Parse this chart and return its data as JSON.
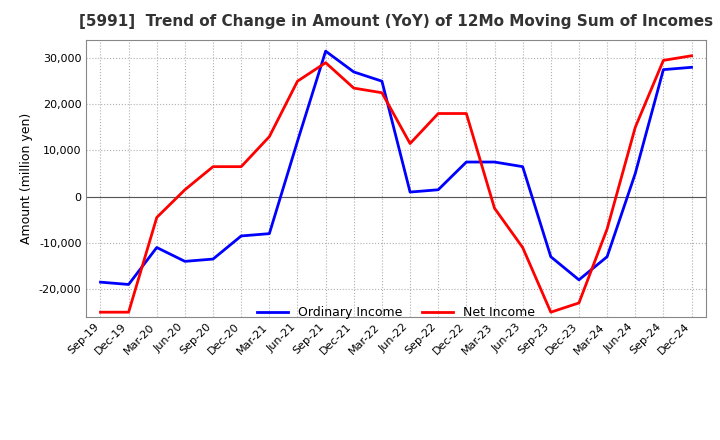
{
  "title": "[5991]  Trend of Change in Amount (YoY) of 12Mo Moving Sum of Incomes",
  "ylabel": "Amount (million yen)",
  "ylim": [
    -26000,
    34000
  ],
  "yticks": [
    -20000,
    -10000,
    0,
    10000,
    20000,
    30000
  ],
  "x_labels": [
    "Sep-19",
    "Dec-19",
    "Mar-20",
    "Jun-20",
    "Sep-20",
    "Dec-20",
    "Mar-21",
    "Jun-21",
    "Sep-21",
    "Dec-21",
    "Mar-22",
    "Jun-22",
    "Sep-22",
    "Dec-22",
    "Mar-23",
    "Jun-23",
    "Sep-23",
    "Dec-23",
    "Mar-24",
    "Jun-24",
    "Sep-24",
    "Dec-24"
  ],
  "ordinary_income": [
    -18500,
    -19000,
    -11000,
    -14000,
    -13500,
    -8500,
    -8000,
    12000,
    31500,
    27000,
    25000,
    1000,
    1500,
    7500,
    7500,
    6500,
    -13000,
    -18000,
    -13000,
    5000,
    27500,
    28000
  ],
  "net_income": [
    -25000,
    -25000,
    -4500,
    1500,
    6500,
    6500,
    13000,
    25000,
    29000,
    23500,
    22500,
    11500,
    18000,
    18000,
    -2500,
    -11000,
    -25000,
    -23000,
    -7000,
    15000,
    29500,
    30500
  ],
  "ordinary_color": "#0000ff",
  "net_color": "#ff0000",
  "line_width": 2.0,
  "legend_ordinary": "Ordinary Income",
  "legend_net": "Net Income",
  "title_color": "#333333",
  "grid_color": "#b0b0b0",
  "background_color": "#ffffff"
}
